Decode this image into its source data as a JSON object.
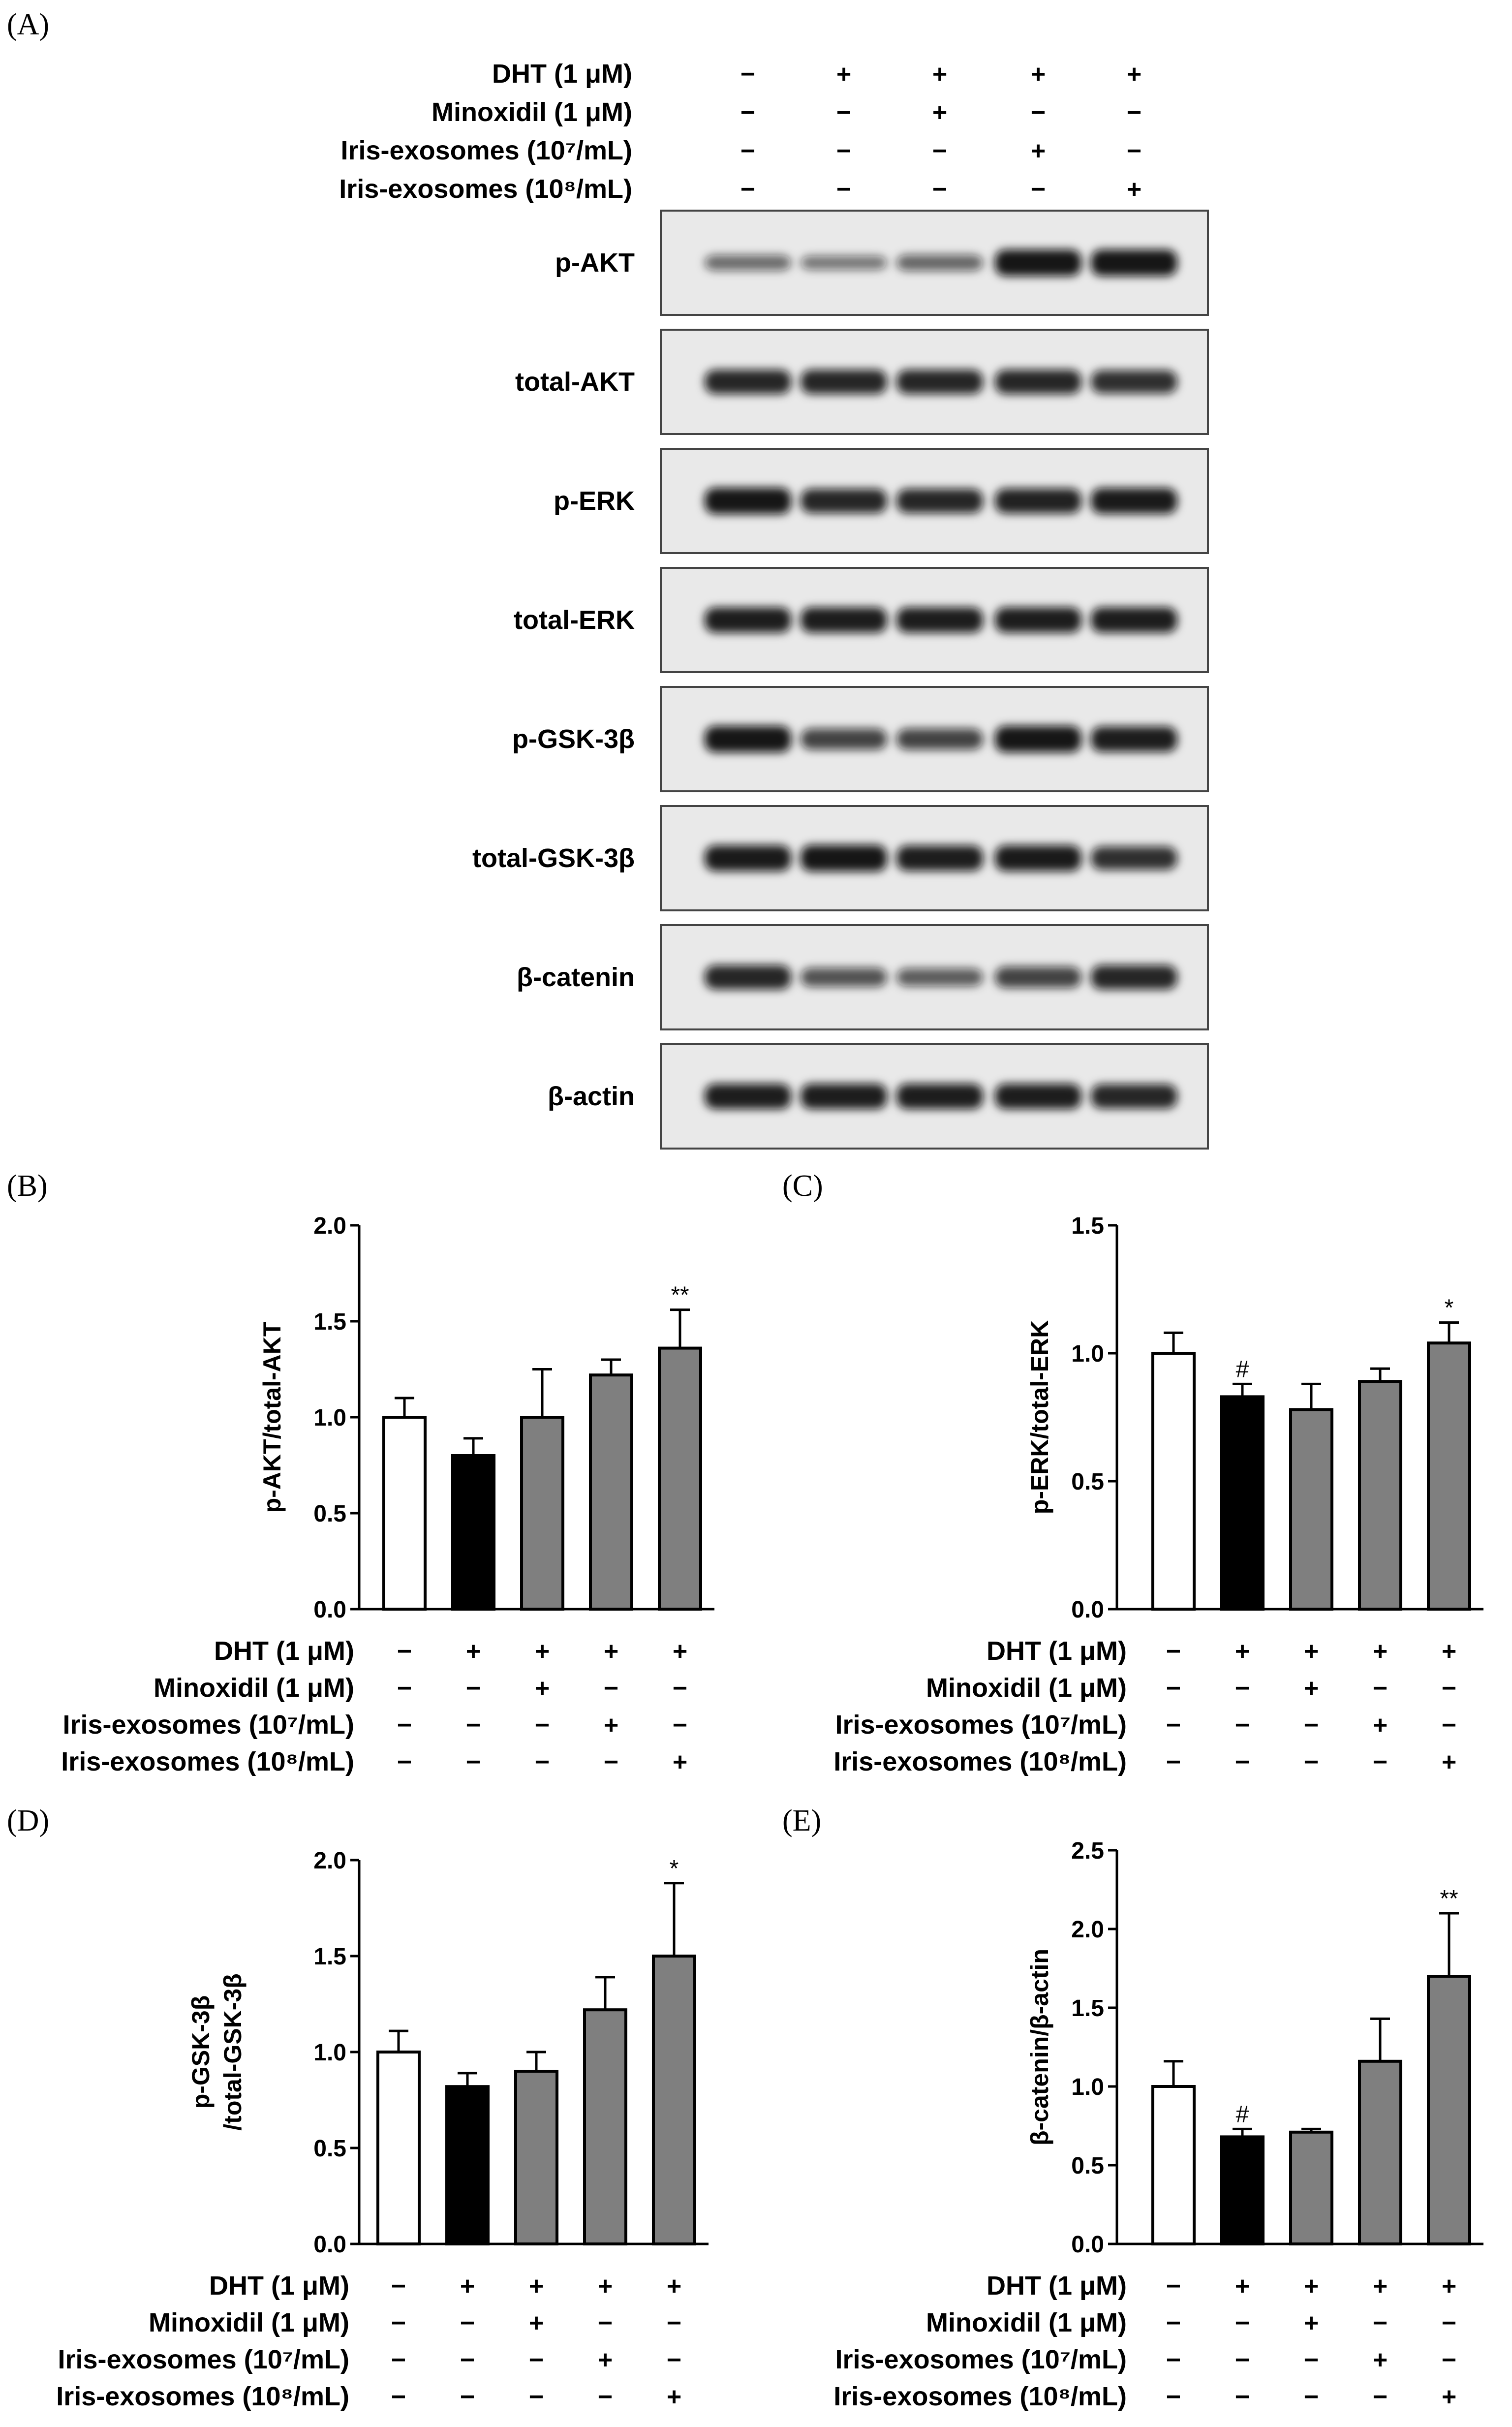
{
  "panels": {
    "A": "(A)",
    "B": "(B)",
    "C": "(C)",
    "D": "(D)",
    "E": "(E)"
  },
  "conditions": [
    {
      "label": "DHT (1 μM)",
      "signs": [
        "−",
        "+",
        "+",
        "+",
        "+"
      ]
    },
    {
      "label": "Minoxidil (1 μM)",
      "signs": [
        "−",
        "−",
        "+",
        "−",
        "−"
      ]
    },
    {
      "label": "Iris-exosomes (10⁷/mL)",
      "signs": [
        "−",
        "−",
        "−",
        "+",
        "−"
      ]
    },
    {
      "label": "Iris-exosomes (10⁸/mL)",
      "signs": [
        "−",
        "−",
        "−",
        "−",
        "+"
      ]
    }
  ],
  "blots": [
    {
      "label": "p-AKT",
      "intensity": [
        0.45,
        0.38,
        0.48,
        0.95,
        0.95
      ]
    },
    {
      "label": "total-AKT",
      "intensity": [
        0.85,
        0.85,
        0.85,
        0.85,
        0.8
      ]
    },
    {
      "label": "p-ERK",
      "intensity": [
        0.95,
        0.85,
        0.85,
        0.88,
        0.92
      ]
    },
    {
      "label": "total-ERK",
      "intensity": [
        0.9,
        0.9,
        0.9,
        0.9,
        0.9
      ]
    },
    {
      "label": "p-GSK-3β",
      "intensity": [
        0.95,
        0.7,
        0.7,
        0.95,
        0.9
      ]
    },
    {
      "label": "total-GSK-3β",
      "intensity": [
        0.92,
        0.95,
        0.9,
        0.92,
        0.8
      ]
    },
    {
      "label": "β-catenin",
      "intensity": [
        0.85,
        0.6,
        0.55,
        0.7,
        0.85
      ]
    },
    {
      "label": "β-actin",
      "intensity": [
        0.9,
        0.9,
        0.9,
        0.9,
        0.85
      ]
    }
  ],
  "colors": {
    "control": "#ffffff",
    "dht": "#000000",
    "treatment": "#7f7f7f",
    "blot_bg": "#e9e9e9",
    "band": "#111111"
  },
  "chart_data": [
    {
      "panel": "B",
      "type": "bar",
      "ylabel": "p-AKT/total-AKT",
      "ylim": [
        0,
        2.0
      ],
      "yticks": [
        "0.0",
        "0.5",
        "1.0",
        "1.5",
        "2.0"
      ],
      "values": [
        1.0,
        0.8,
        1.0,
        1.22,
        1.36
      ],
      "errors": [
        0.1,
        0.09,
        0.25,
        0.08,
        0.2
      ],
      "significance": [
        "",
        "",
        "",
        "",
        "**"
      ]
    },
    {
      "panel": "C",
      "type": "bar",
      "ylabel": "p-ERK/total-ERK",
      "ylim": [
        0,
        1.5
      ],
      "yticks": [
        "0.0",
        "0.5",
        "1.0",
        "1.5"
      ],
      "values": [
        1.0,
        0.83,
        0.78,
        0.89,
        1.04
      ],
      "errors": [
        0.08,
        0.05,
        0.1,
        0.05,
        0.08
      ],
      "significance": [
        "",
        "#",
        "",
        "",
        "*"
      ]
    },
    {
      "panel": "D",
      "type": "bar",
      "ylabel": "p-GSK-3β",
      "ylabel2": "/total-GSK-3β",
      "ylim": [
        0,
        2.0
      ],
      "yticks": [
        "0.0",
        "0.5",
        "1.0",
        "1.5",
        "2.0"
      ],
      "values": [
        1.0,
        0.82,
        0.9,
        1.22,
        1.5
      ],
      "errors": [
        0.11,
        0.07,
        0.1,
        0.17,
        0.38
      ],
      "significance": [
        "",
        "",
        "",
        "",
        "*"
      ]
    },
    {
      "panel": "E",
      "type": "bar",
      "ylabel": "β-catenin/β-actin",
      "ylim": [
        0,
        2.5
      ],
      "yticks": [
        "0.0",
        "0.5",
        "1.0",
        "1.5",
        "2.0",
        "2.5"
      ],
      "values": [
        1.0,
        0.68,
        0.71,
        1.16,
        1.7
      ],
      "errors": [
        0.16,
        0.05,
        0.02,
        0.27,
        0.4
      ],
      "significance": [
        "",
        "#",
        "",
        "",
        "**"
      ]
    }
  ]
}
